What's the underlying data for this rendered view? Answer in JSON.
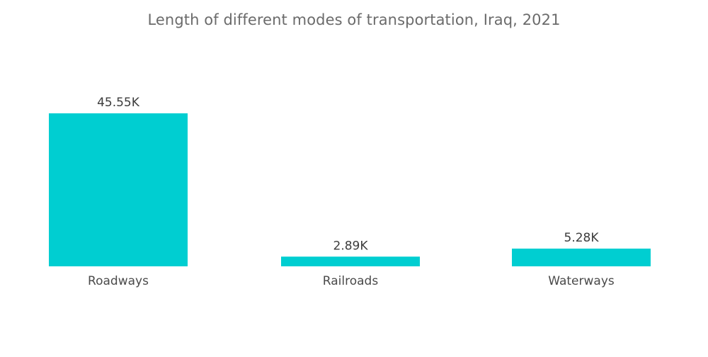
{
  "colors": {
    "bar": "#00ced1",
    "title": "#6b6b6b",
    "label": "#3c3c3c"
  },
  "chart_data": {
    "type": "bar",
    "title": "Length of different modes of transportation, Iraq, 2021",
    "categories": [
      "Roadways",
      "Railroads",
      "Waterways"
    ],
    "values": [
      45550,
      2890,
      5280
    ],
    "data_labels": [
      "45.55K",
      "2.89K",
      "5.28K"
    ],
    "xlabel": "",
    "ylabel": "",
    "ylim": [
      0,
      45550
    ],
    "grid": false,
    "legend": "none"
  }
}
